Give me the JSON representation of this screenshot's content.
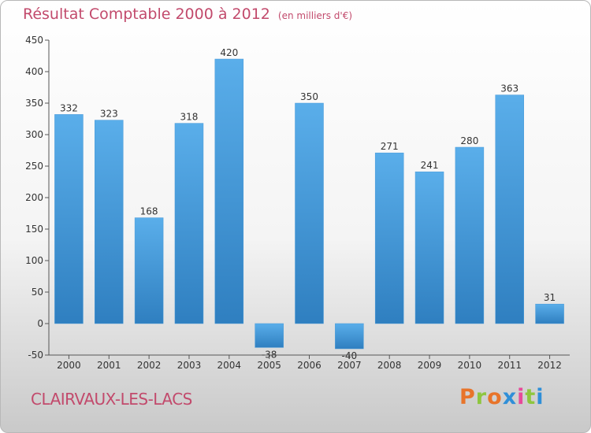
{
  "header": {
    "title": "Résultat Comptable 2000 à 2012",
    "unit": "(en milliers d'€)"
  },
  "footer": {
    "city": "CLAIRVAUX-LES-LACS",
    "logo": "Proxiti"
  },
  "colors": {
    "title": "#c24a6c",
    "bar_top": "#5aaeea",
    "bar_bottom": "#2f7fc0",
    "logo_letters": [
      "#e8742a",
      "#8ec63f",
      "#e8742a",
      "#2f8fd8",
      "#e84a9a",
      "#8ec63f",
      "#2f8fd8"
    ]
  },
  "chart_data": {
    "type": "bar",
    "title": "Résultat Comptable 2000 à 2012",
    "ylabel": "en milliers d'€",
    "xlabel": "",
    "categories": [
      "2000",
      "2001",
      "2002",
      "2003",
      "2004",
      "2005",
      "2006",
      "2007",
      "2008",
      "2009",
      "2010",
      "2011",
      "2012"
    ],
    "values": [
      332,
      323,
      168,
      318,
      420,
      -38,
      350,
      -40,
      271,
      241,
      280,
      363,
      31
    ],
    "value_labels": [
      "332",
      "323",
      "168",
      "318",
      "420",
      "-38",
      "350",
      "-40",
      "271",
      "241",
      "280",
      "363",
      "31"
    ],
    "ylim": [
      -50,
      450
    ],
    "yticks": [
      -50,
      0,
      50,
      100,
      150,
      200,
      250,
      300,
      350,
      400,
      450
    ],
    "grid": false
  }
}
